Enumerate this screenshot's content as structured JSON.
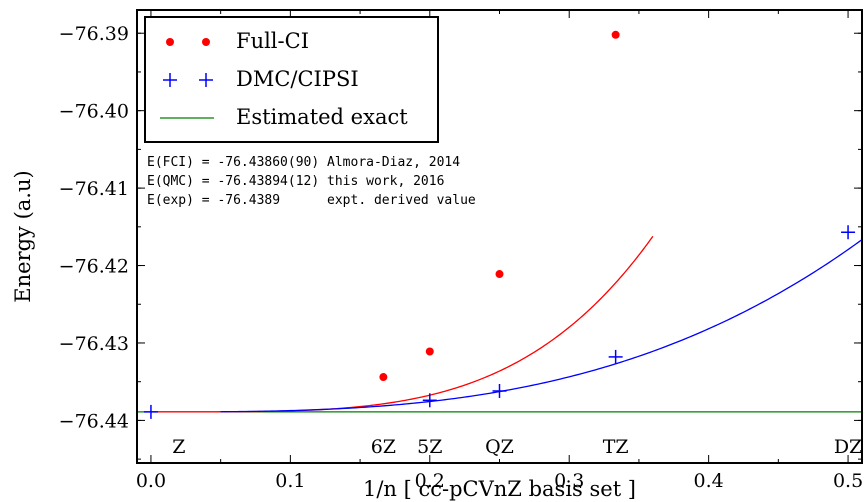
{
  "chart_data": {
    "type": "scatter",
    "xlabel": "1/n [ cc-pCVnZ basis set ]",
    "ylabel": "Energy (a.u)",
    "xlim": [
      -0.01,
      0.51
    ],
    "ylim": [
      -76.4455,
      -76.387
    ],
    "x_ticks": [
      "0.0",
      "0.1",
      "0.2",
      "0.3",
      "0.4",
      "0.5"
    ],
    "y_ticks": [
      "−76.39",
      "−76.40",
      "−76.41",
      "−76.42",
      "−76.43",
      "−76.44"
    ],
    "x_tick_values": [
      0.0,
      0.1,
      0.2,
      0.3,
      0.4,
      0.5
    ],
    "y_tick_values": [
      -76.39,
      -76.4,
      -76.41,
      -76.42,
      -76.43,
      -76.44
    ],
    "grid": false,
    "legend_position": "top-left",
    "series": [
      {
        "name": "Full-CI",
        "marker": "dot",
        "color": "#ff0000",
        "x": [
          0.1667,
          0.2,
          0.25,
          0.3333
        ],
        "y": [
          -76.4344,
          -76.4311,
          -76.4211,
          -76.3902
        ]
      },
      {
        "name": "DMC/CIPSI",
        "marker": "plus",
        "color": "#0000ff",
        "x": [
          0.0,
          0.2,
          0.25,
          0.3333,
          0.5
        ],
        "y": [
          -76.4389,
          -76.4374,
          -76.4362,
          -76.4318,
          -76.4157
        ]
      },
      {
        "name": "Estimated exact",
        "marker": "line",
        "color": "#008000",
        "y_value": -76.4389
      }
    ],
    "fits": [
      {
        "series": "Full-CI",
        "color": "#ff0000",
        "x_start": 0.0,
        "x_end": 0.36,
        "a": -76.4389,
        "b": 1.35,
        "p": 4
      },
      {
        "series": "DMC/CIPSI",
        "color": "#0000ff",
        "x_start": 0.05,
        "x_end": 0.51,
        "a": -76.4389,
        "b": 0.1677,
        "p": 3
      }
    ],
    "basis_labels": [
      {
        "text": "Z",
        "x": 0.02
      },
      {
        "text": "6Z",
        "x": 0.1667
      },
      {
        "text": "5Z",
        "x": 0.2
      },
      {
        "text": "QZ",
        "x": 0.25
      },
      {
        "text": "TZ",
        "x": 0.3333
      },
      {
        "text": "DZ",
        "x": 0.5
      }
    ],
    "annotations": [
      "E(FCI) = -76.43860(90) Almora-Diaz, 2014",
      "E(QMC) = -76.43894(12) this work, 2016",
      "E(exp) = -76.4389      expt. derived value"
    ]
  }
}
